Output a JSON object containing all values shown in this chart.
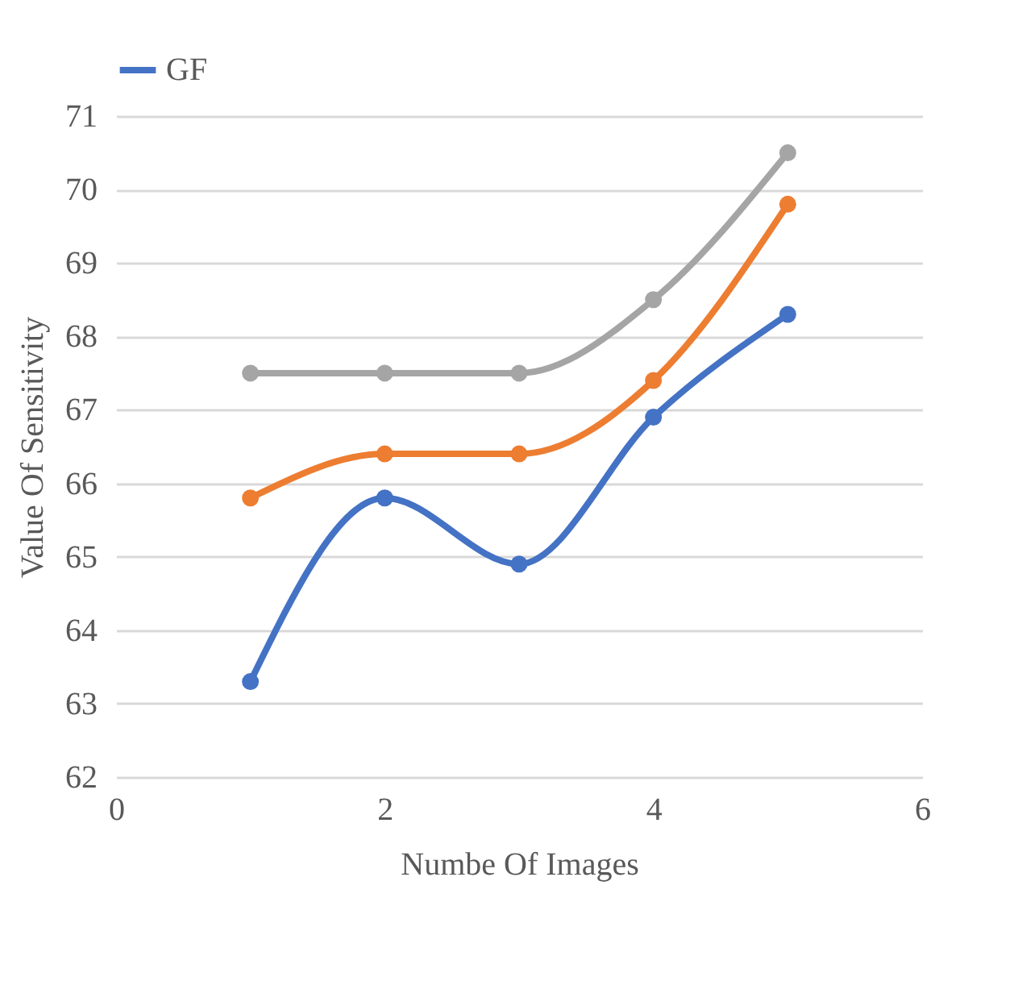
{
  "chart_data": {
    "type": "line",
    "xlabel": "Numbe Of Images",
    "ylabel": "Value Of Sensitivity",
    "x": [
      1,
      2,
      3,
      4,
      5
    ],
    "series": [
      {
        "color": "#a5a5a5",
        "values": [
          67.5,
          67.5,
          67.5,
          68.5,
          70.5
        ]
      },
      {
        "color": "#ed7d31",
        "values": [
          65.8,
          66.4,
          66.4,
          67.4,
          69.8
        ]
      },
      {
        "name": "GF",
        "color": "#4472c4",
        "values": [
          63.3,
          65.8,
          64.9,
          66.9,
          68.3
        ]
      }
    ],
    "xlim": [
      0,
      6
    ],
    "xticks": [
      0,
      2,
      4,
      6
    ],
    "ylim": [
      62,
      71
    ],
    "yticks": [
      62,
      63,
      64,
      65,
      66,
      67,
      68,
      69,
      70,
      71
    ],
    "grid": "y",
    "legend": "top",
    "marker": "circle",
    "line_style": "solid"
  }
}
